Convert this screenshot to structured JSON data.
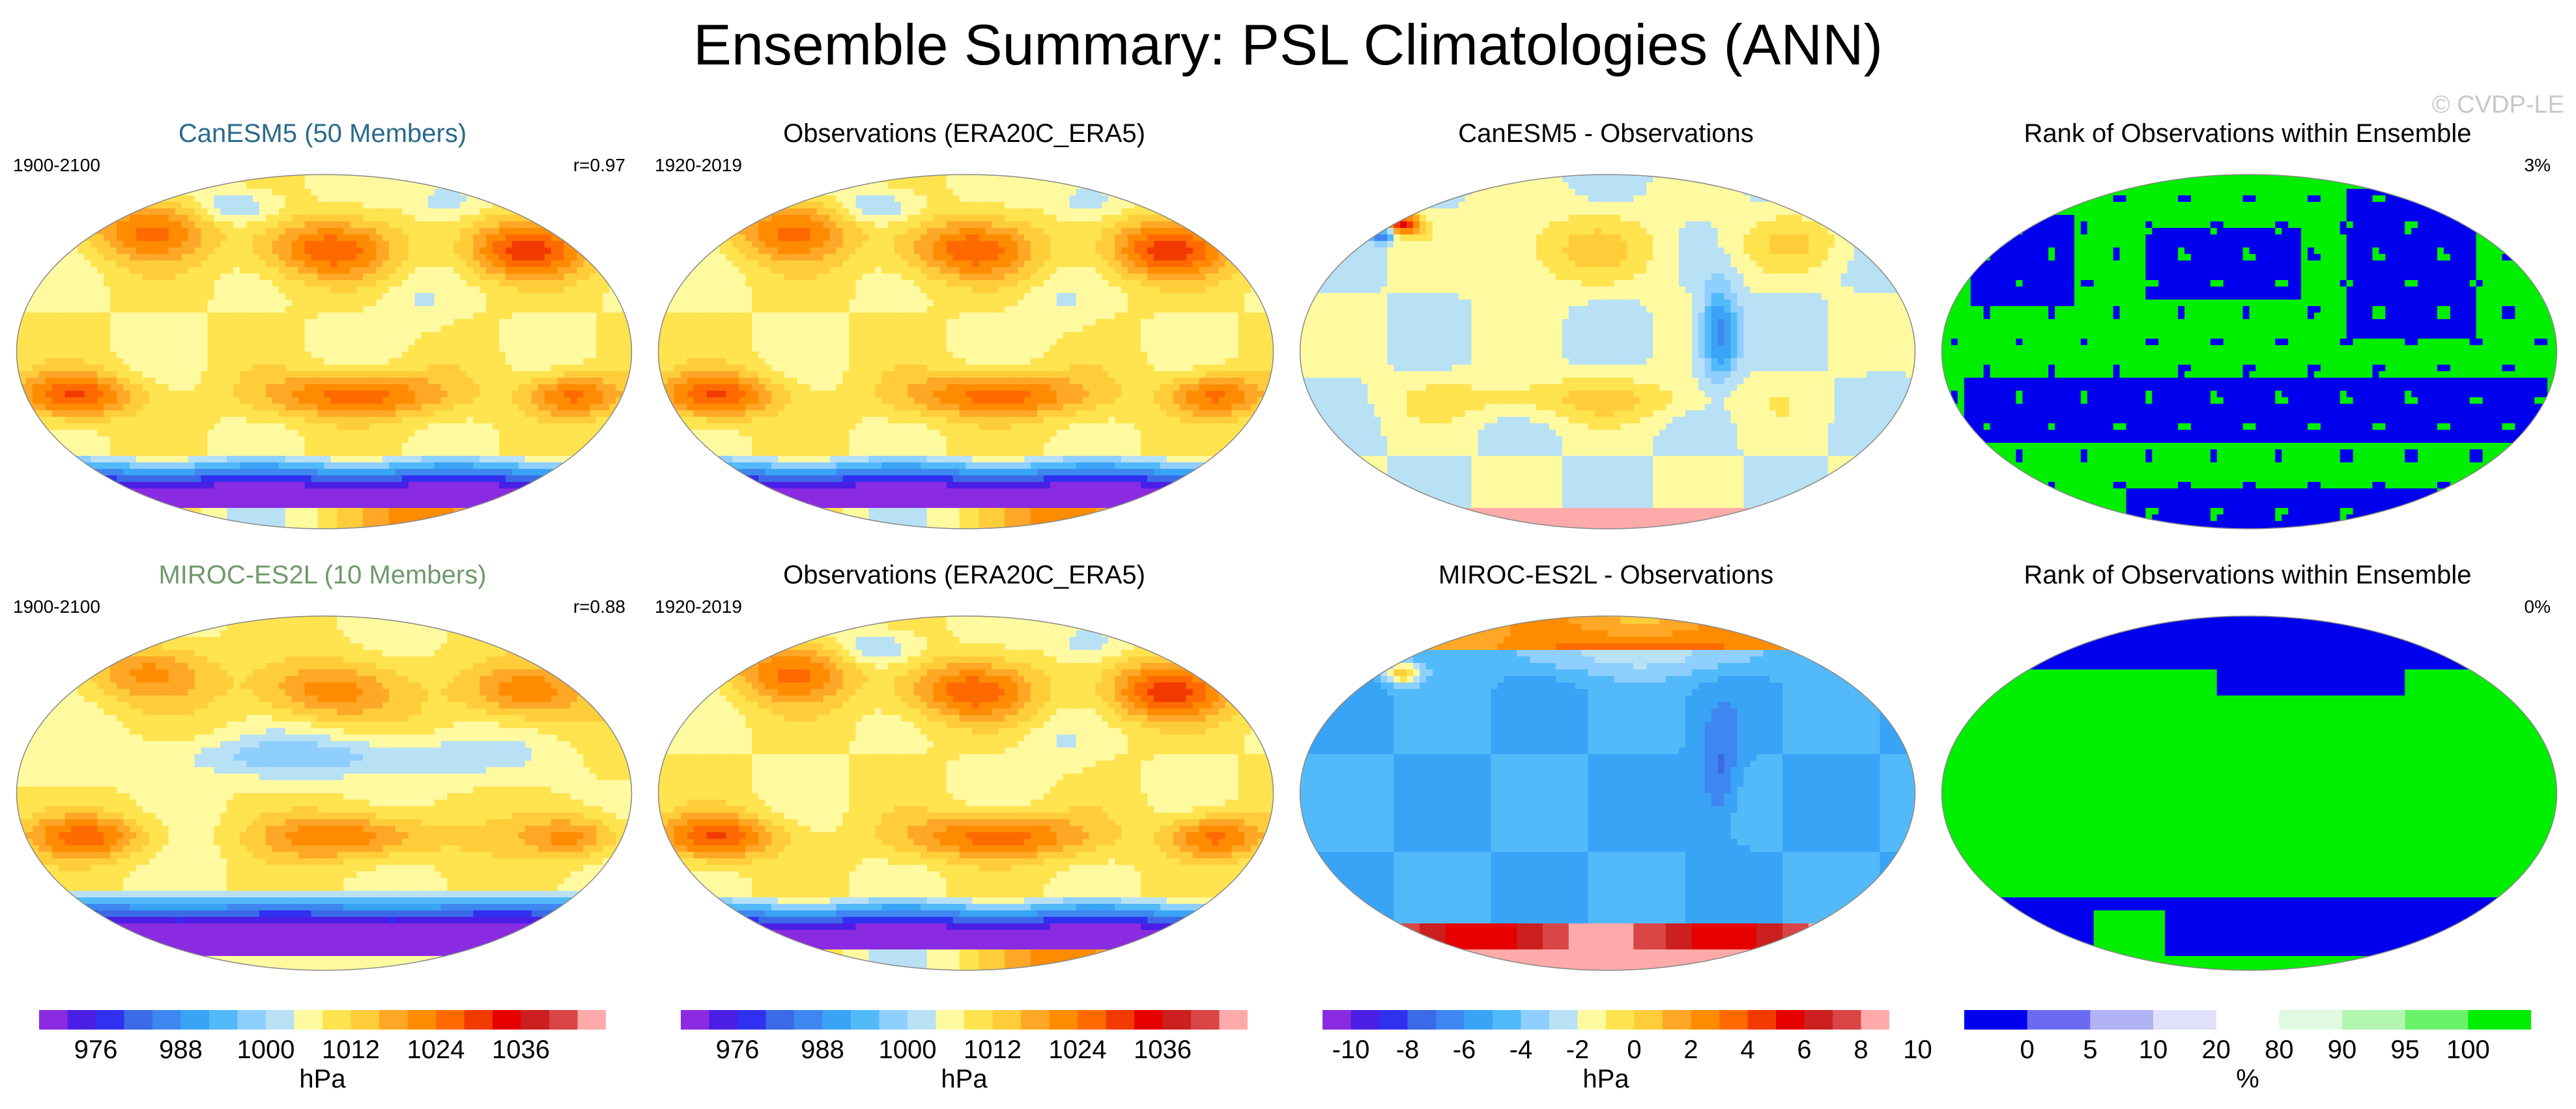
{
  "figure": {
    "title": "Ensemble Summary: PSL Climatologies (ANN)",
    "watermark": "© CVDP-LE"
  },
  "colors": {
    "model_title_1": "#2a6a8a",
    "model_title_2": "#6f9a6a",
    "rank_low": "#0000ee",
    "rank_high": "#00ee00"
  },
  "chart_data": [
    {
      "type": "heatmap",
      "panel": "p11",
      "title": "CanESM5 (50 Members)",
      "left_label": "1900-2100",
      "right_label": "r=0.97",
      "colormap": "psl",
      "pattern": "mean"
    },
    {
      "type": "heatmap",
      "panel": "p12",
      "title": "Observations (ERA20C_ERA5)",
      "left_label": "1920-2019",
      "right_label": "",
      "colormap": "psl",
      "pattern": "mean"
    },
    {
      "type": "heatmap",
      "panel": "p13",
      "title": "CanESM5 - Observations",
      "left_label": "",
      "right_label": "",
      "colormap": "diff",
      "pattern": "diff1"
    },
    {
      "type": "heatmap",
      "panel": "p14",
      "title": "Rank of Observations within Ensemble",
      "left_label": "",
      "right_label": "3%",
      "colormap": "rank",
      "pattern": "rank1"
    },
    {
      "type": "heatmap",
      "panel": "p21",
      "title": "MIROC-ES2L (10 Members)",
      "left_label": "1900-2100",
      "right_label": "r=0.88",
      "colormap": "psl",
      "pattern": "mean2"
    },
    {
      "type": "heatmap",
      "panel": "p22",
      "title": "Observations (ERA20C_ERA5)",
      "left_label": "1920-2019",
      "right_label": "",
      "colormap": "psl",
      "pattern": "mean"
    },
    {
      "type": "heatmap",
      "panel": "p23",
      "title": "MIROC-ES2L - Observations",
      "left_label": "",
      "right_label": "",
      "colormap": "diff",
      "pattern": "diff2"
    },
    {
      "type": "heatmap",
      "panel": "p24",
      "title": "Rank of Observations within Ensemble",
      "left_label": "",
      "right_label": "0%",
      "colormap": "rank",
      "pattern": "rank2"
    }
  ],
  "colorbars": [
    {
      "id": "cb1",
      "unit": "hPa",
      "colormap": "psl",
      "tick_labels": [
        "976",
        "988",
        "1000",
        "1012",
        "1024",
        "1036"
      ],
      "colors": [
        "#8a2be2",
        "#4b1ee6",
        "#3030f0",
        "#3a6ae8",
        "#3f87f0",
        "#39a4f6",
        "#53baf9",
        "#8fcfff",
        "#b9e1f5",
        "#fffaa0",
        "#ffe34f",
        "#ffcd3a",
        "#ffa726",
        "#ff8c00",
        "#ff6a00",
        "#f23a00",
        "#e60000",
        "#cc1f1f",
        "#d94545",
        "#ffaaaa"
      ]
    },
    {
      "id": "cb2",
      "unit": "hPa",
      "colormap": "psl",
      "tick_labels": [
        "976",
        "988",
        "1000",
        "1012",
        "1024",
        "1036"
      ],
      "colors": [
        "#8a2be2",
        "#4b1ee6",
        "#3030f0",
        "#3a6ae8",
        "#3f87f0",
        "#39a4f6",
        "#53baf9",
        "#8fcfff",
        "#b9e1f5",
        "#fffaa0",
        "#ffe34f",
        "#ffcd3a",
        "#ffa726",
        "#ff8c00",
        "#ff6a00",
        "#f23a00",
        "#e60000",
        "#cc1f1f",
        "#d94545",
        "#ffaaaa"
      ]
    },
    {
      "id": "cb3",
      "unit": "hPa",
      "colormap": "diff",
      "tick_labels": [
        "-10",
        "-8",
        "-6",
        "-4",
        "-2",
        "0",
        "2",
        "4",
        "6",
        "8",
        "10"
      ],
      "colors": [
        "#8a2be2",
        "#4b1ee6",
        "#3030f0",
        "#3a6ae8",
        "#3f87f0",
        "#39a4f6",
        "#53baf9",
        "#8fcfff",
        "#b9e1f5",
        "#fffaa0",
        "#ffe34f",
        "#ffcd3a",
        "#ffa726",
        "#ff8c00",
        "#ff6a00",
        "#f23a00",
        "#e60000",
        "#cc1f1f",
        "#d94545",
        "#ffaaaa"
      ]
    },
    {
      "id": "cb4",
      "unit": "%",
      "colormap": "rank",
      "tick_labels": [
        "0",
        "5",
        "10",
        "20",
        "80",
        "90",
        "95",
        "100"
      ],
      "colors": [
        "#0000ee",
        "#6b6bf2",
        "#b2b2f6",
        "#e0e0fa",
        "#ffffff",
        "#e0fae0",
        "#b2f6b2",
        "#6bf26b",
        "#00ee00"
      ]
    }
  ]
}
